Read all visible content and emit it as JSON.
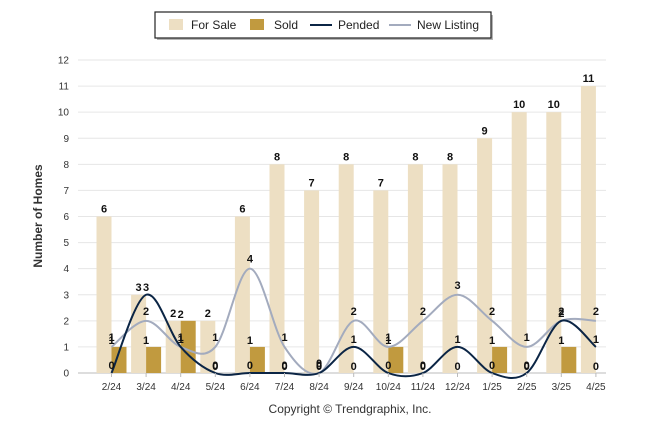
{
  "chart_data": {
    "type": "bar",
    "categories": [
      "2/24",
      "3/24",
      "4/24",
      "5/24",
      "6/24",
      "7/24",
      "8/24",
      "9/24",
      "10/24",
      "11/24",
      "12/24",
      "1/25",
      "2/25",
      "3/25",
      "4/25"
    ],
    "series": [
      {
        "name": "For Sale",
        "kind": "bar",
        "color": "#EDDFC3",
        "values": [
          6,
          3,
          2,
          2,
          6,
          8,
          7,
          8,
          7,
          8,
          8,
          9,
          10,
          10,
          11
        ]
      },
      {
        "name": "Sold",
        "kind": "bar",
        "color": "#C19A3F",
        "values": [
          1,
          1,
          2,
          0,
          1,
          0,
          0,
          0,
          1,
          0,
          0,
          1,
          0,
          1,
          0
        ]
      },
      {
        "name": "Pended",
        "kind": "line",
        "color": "#0B2545",
        "values": [
          0,
          3,
          1,
          0,
          0,
          0,
          0,
          1,
          0,
          0,
          1,
          0,
          0,
          2,
          1
        ]
      },
      {
        "name": "New Listing",
        "kind": "line",
        "color": "#A3ABBE",
        "values": [
          1,
          2,
          1,
          1,
          4,
          1,
          0,
          2,
          1,
          2,
          3,
          2,
          1,
          2,
          2
        ]
      }
    ],
    "ylabel": "Number of Homes",
    "xlabel": "",
    "ylim": [
      0,
      12
    ],
    "yticks": [
      0,
      1,
      2,
      3,
      4,
      5,
      6,
      7,
      8,
      9,
      10,
      11,
      12
    ],
    "legend_position": "top-center",
    "grid": true
  },
  "legend": {
    "for_sale": "For Sale",
    "sold": "Sold",
    "pended": "Pended",
    "new_listing": "New Listing"
  },
  "axis": {
    "ylabel": "Number of Homes"
  },
  "footer": {
    "credit": "Copyright © Trendgraphix, Inc."
  }
}
